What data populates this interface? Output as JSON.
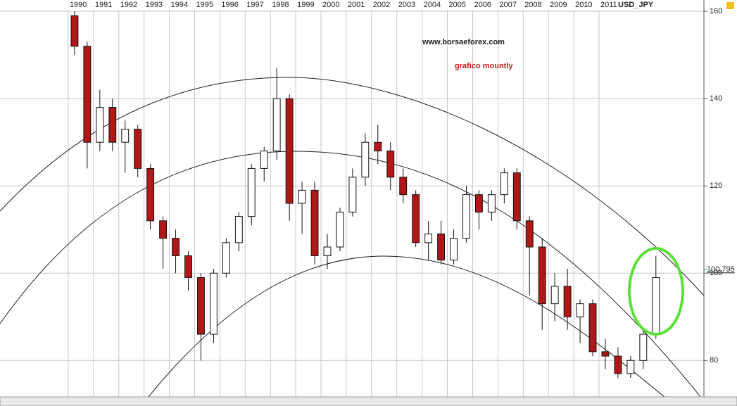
{
  "chart_data": {
    "type": "candlestick",
    "title": "USD_JPY",
    "annotations": [
      "www.borsaeforex.com",
      "grafico mountly"
    ],
    "x": [
      1990.25,
      1990.75,
      1991.25,
      1991.75,
      1992.25,
      1992.75,
      1993.25,
      1993.75,
      1994.25,
      1994.75,
      1995.25,
      1995.75,
      1996.25,
      1996.75,
      1997.25,
      1997.75,
      1998.25,
      1998.75,
      1999.25,
      1999.75,
      2000.25,
      2000.75,
      2001.25,
      2001.75,
      2002.25,
      2002.75,
      2003.25,
      2003.75,
      2004.25,
      2004.75,
      2005.25,
      2005.75,
      2006.25,
      2006.75,
      2007.25,
      2007.75,
      2008.25,
      2008.75,
      2009.25,
      2009.75,
      2010.25,
      2010.75,
      2011.25,
      2011.75,
      2012.25,
      2012.75,
      2013.25
    ],
    "open": [
      159,
      152,
      130,
      138,
      130,
      133,
      124,
      112,
      108,
      104,
      99,
      86,
      100,
      107,
      113,
      124,
      128,
      140,
      116,
      119,
      104,
      106,
      114,
      122,
      130,
      128,
      122,
      118,
      107,
      109,
      103,
      108,
      118,
      114,
      118,
      123,
      112,
      106,
      93,
      97,
      90,
      93,
      82,
      81,
      77,
      80,
      86
    ],
    "high": [
      160,
      153,
      142,
      140,
      135,
      134,
      125,
      113,
      110,
      105,
      100,
      101,
      108,
      114,
      125,
      129,
      147,
      141,
      121,
      121,
      109,
      115,
      124,
      132,
      134,
      130,
      124,
      119,
      112,
      112,
      110,
      120,
      119,
      119,
      124,
      124,
      113,
      108,
      100,
      101,
      94,
      94,
      85,
      83,
      81,
      87,
      104
    ],
    "low": [
      150,
      124,
      128,
      128,
      123,
      122,
      110,
      101,
      100,
      96,
      80,
      84,
      99,
      105,
      111,
      121,
      126,
      112,
      109,
      102,
      101,
      105,
      113,
      120,
      125,
      119,
      116,
      106,
      103,
      102,
      102,
      107,
      110,
      112,
      116,
      110,
      95,
      87,
      89,
      87,
      84,
      81,
      78,
      76,
      76,
      78,
      85
    ],
    "close": [
      152,
      130,
      138,
      130,
      133,
      124,
      112,
      108,
      104,
      99,
      86,
      100,
      107,
      113,
      124,
      128,
      140,
      116,
      119,
      104,
      106,
      114,
      122,
      130,
      128,
      122,
      118,
      107,
      109,
      103,
      108,
      118,
      114,
      118,
      123,
      112,
      106,
      93,
      97,
      90,
      93,
      82,
      81,
      77,
      80,
      86,
      99
    ],
    "up_color": "#ffffff",
    "down_color": "#b01818",
    "last_value": 100.795,
    "xlim": [
      1987.3,
      2015.15
    ],
    "xticks": [
      1990,
      1991,
      1992,
      1993,
      1994,
      1995,
      1996,
      1997,
      1998,
      1999,
      2000,
      2001,
      2002,
      2003,
      2004,
      2005,
      2006,
      2007,
      2008,
      2009,
      2010,
      2011
    ],
    "ylim": [
      71.5,
      162.6
    ],
    "yticks": [
      80,
      100,
      120,
      140,
      160
    ],
    "grid": true
  }
}
